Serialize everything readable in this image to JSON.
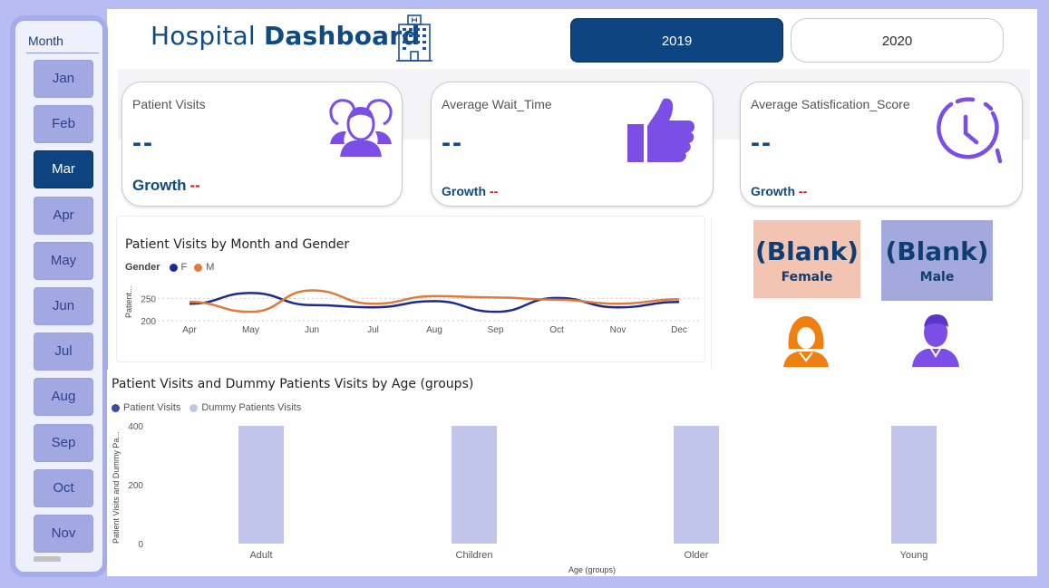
{
  "slicer": {
    "title": "Month",
    "months": [
      "Jan",
      "Feb",
      "Mar",
      "Apr",
      "May",
      "Jun",
      "Jul",
      "Aug",
      "Sep",
      "Oct",
      "Nov"
    ],
    "selected": "Mar"
  },
  "header": {
    "title_light": "Hospital",
    "title_bold": "Dashboard"
  },
  "years": {
    "y2019": "2019",
    "y2020": "2020",
    "selected": "2019"
  },
  "kpis": {
    "visits": {
      "label": "Patient Visits",
      "value": "--",
      "growth_label": "Growth",
      "growth_value": "--"
    },
    "wait": {
      "label": "Average Wait_Time",
      "value": "--",
      "growth_label": "Growth",
      "growth_value": "--"
    },
    "satisfaction": {
      "label": "Average Satisfication_Score",
      "value": "--",
      "growth_label": "Growth",
      "growth_value": "--"
    }
  },
  "gender_cards": {
    "female": {
      "value": "(Blank)",
      "label": "Female"
    },
    "male": {
      "value": "(Blank)",
      "label": "Male"
    }
  },
  "colors": {
    "navy": "#0e4480",
    "female_line": "#e07a3b",
    "male_line": "#1d2a8f",
    "bar": "#c0c5e9",
    "icon_purple": "#7b4ee6",
    "female_icon": "#f07f12"
  },
  "chart_data": [
    {
      "type": "line",
      "title": "Patient Visits by Month and Gender",
      "legend_title": "Gender",
      "legend_position": "top-left",
      "ylabel": "Patient...",
      "xlabel": "",
      "categories": [
        "Apr",
        "May",
        "Jun",
        "Jul",
        "Aug",
        "Sep",
        "Oct",
        "Nov",
        "Dec"
      ],
      "series": [
        {
          "name": "F",
          "values": [
            238,
            262,
            235,
            230,
            244,
            220,
            251,
            230,
            242
          ]
        },
        {
          "name": "M",
          "values": [
            242,
            220,
            268,
            238,
            255,
            252,
            247,
            238,
            248
          ]
        }
      ],
      "yticks": [
        200,
        250
      ],
      "ylim": [
        190,
        275
      ],
      "grid": true
    },
    {
      "type": "bar",
      "title": "Patient Visits and Dummy Patients Visits by Age (groups)",
      "legend_position": "top-left",
      "xlabel": "Age (groups)",
      "ylabel": "Patient Visits and Dummy Pa...",
      "categories": [
        "Adult",
        "Children",
        "Older",
        "Young"
      ],
      "series": [
        {
          "name": "Patient Visits",
          "values": [
            0,
            0,
            0,
            0
          ]
        },
        {
          "name": "Dummy Patients Visits",
          "values": [
            400,
            400,
            400,
            400
          ]
        }
      ],
      "yticks": [
        0,
        200,
        400
      ],
      "ylim": [
        0,
        400
      ],
      "grid": false
    }
  ]
}
